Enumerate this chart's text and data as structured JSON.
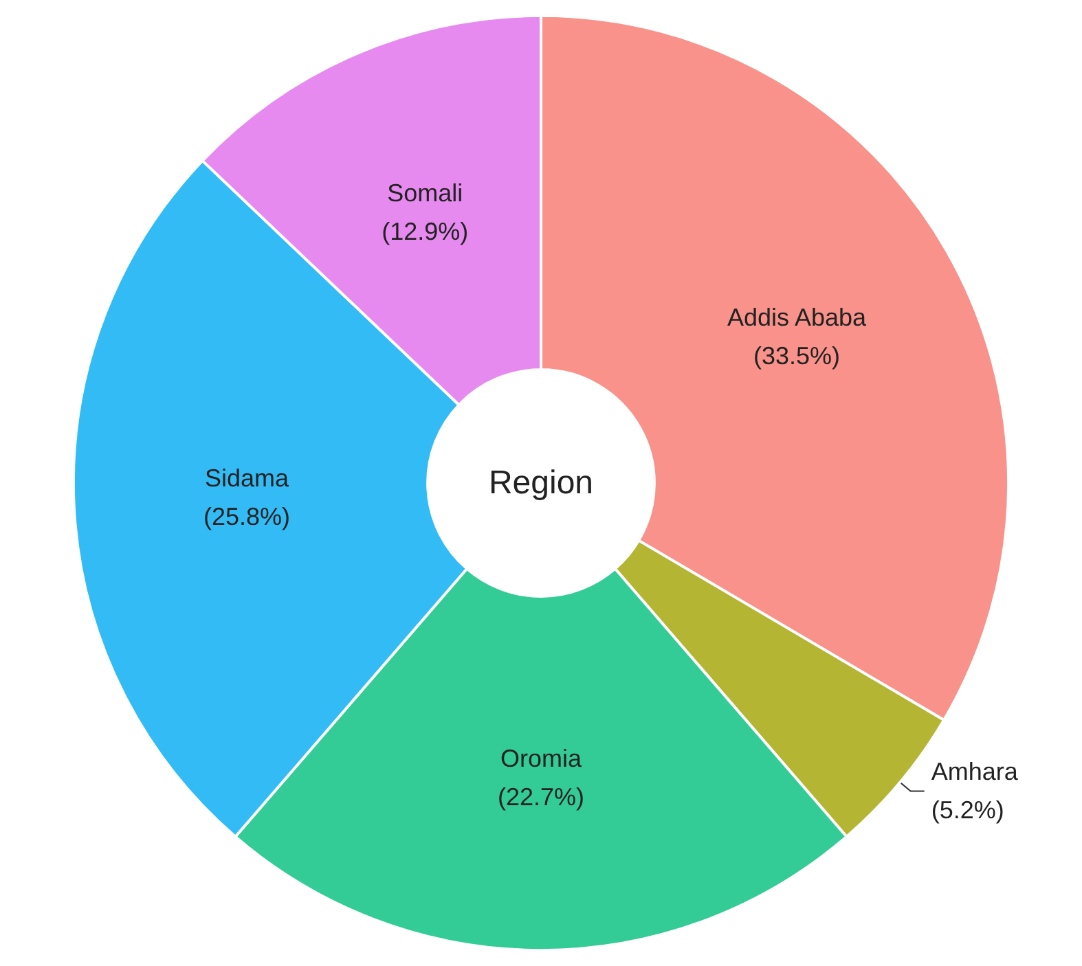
{
  "chart_data": {
    "type": "donut",
    "title": "Region",
    "categories": [
      "Addis Ababa",
      "Amhara",
      "Oromia",
      "Sidama",
      "Somali"
    ],
    "values": [
      33.5,
      5.2,
      22.7,
      25.8,
      12.9
    ],
    "colors": [
      "#f8928a",
      "#b5b534",
      "#33cc96",
      "#33bbf5",
      "#e78af0"
    ],
    "value_labels": [
      "(33.5%)",
      "(5.2%)",
      "(22.7%)",
      "(25.8%)",
      "(12.9%)"
    ]
  }
}
